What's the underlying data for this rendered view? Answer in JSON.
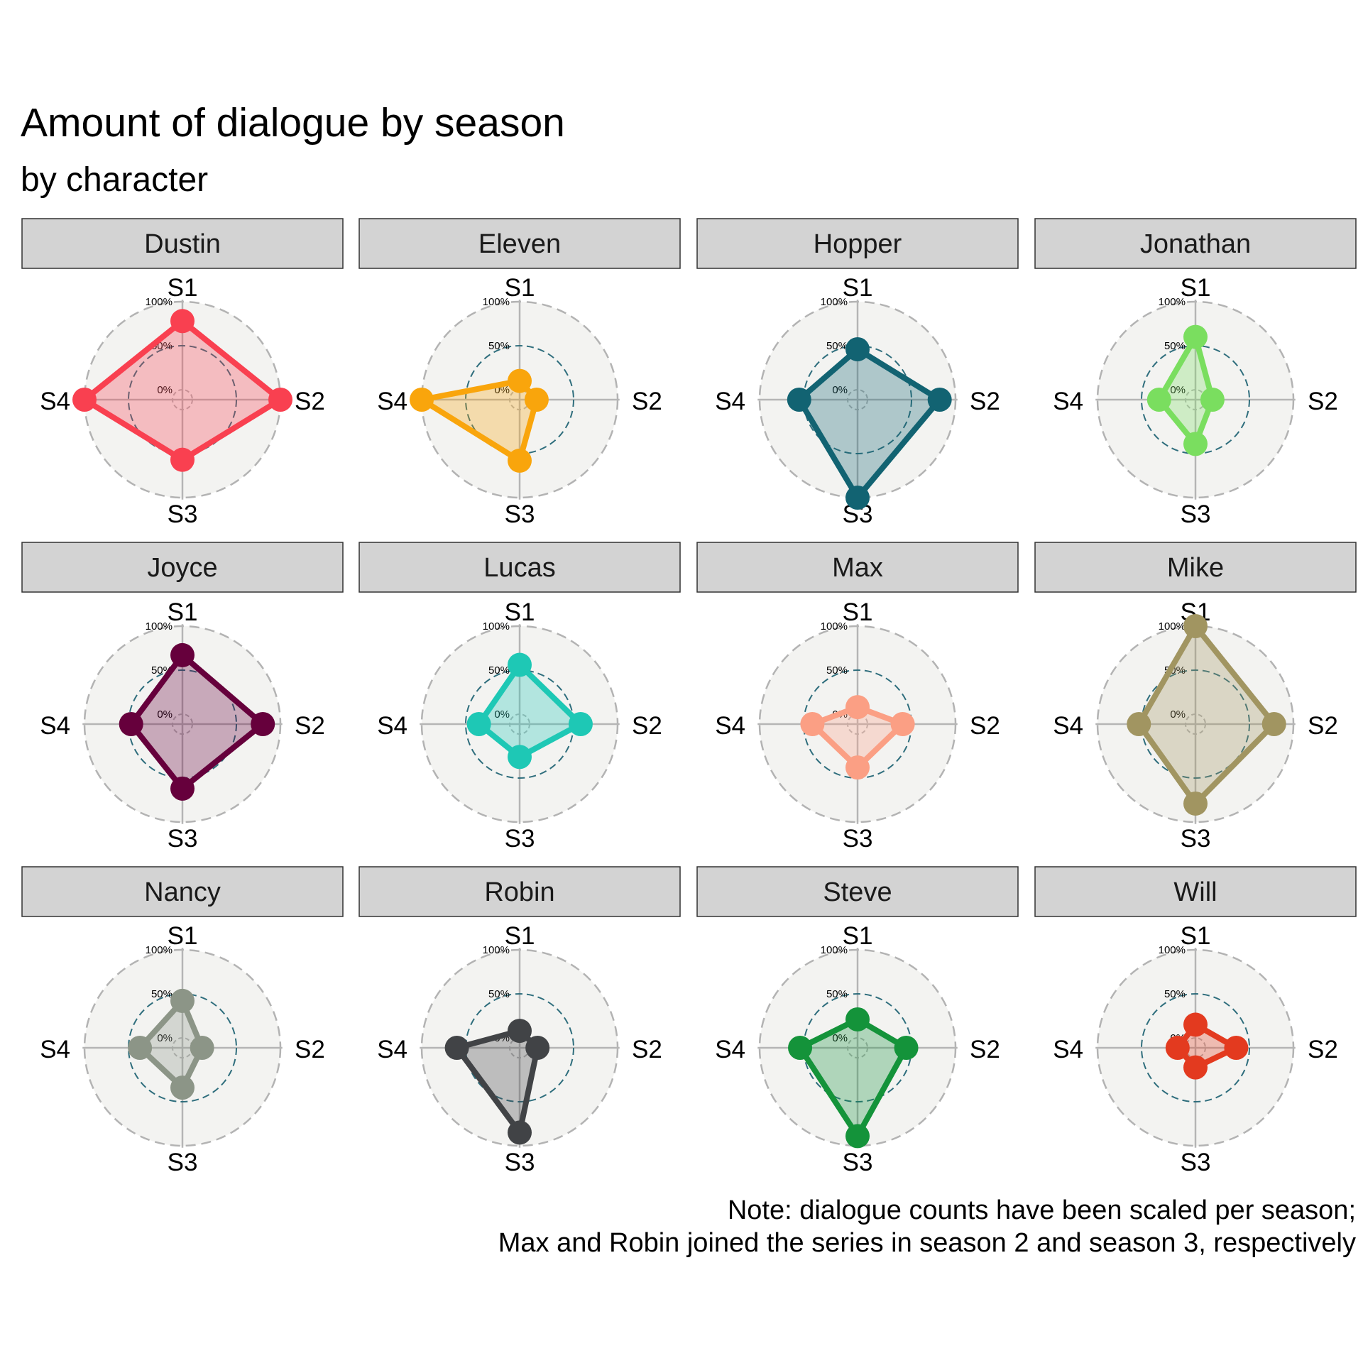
{
  "chart_data": {
    "type": "radar",
    "title": "Amount of dialogue by season",
    "subtitle": "by character",
    "axes": [
      "S1",
      "S2",
      "S3",
      "S4"
    ],
    "radial_ticks": [
      "0%",
      "50%",
      "100%"
    ],
    "ylim": [
      0,
      100
    ],
    "facets": [
      {
        "name": "Dustin",
        "color": "#f94050",
        "values": [
          78,
          100,
          57,
          100
        ]
      },
      {
        "name": "Eleven",
        "color": "#f9a50c",
        "values": [
          10,
          8,
          58,
          100
        ]
      },
      {
        "name": "Hopper",
        "color": "#126372",
        "values": [
          46,
          82,
          100,
          55
        ]
      },
      {
        "name": "Jonathan",
        "color": "#7ade5f",
        "values": [
          60,
          8,
          39,
          30
        ]
      },
      {
        "name": "Joyce",
        "color": "#66003c",
        "values": [
          67,
          80,
          62,
          47
        ]
      },
      {
        "name": "Lucas",
        "color": "#1ec8b5",
        "values": [
          56,
          58,
          26,
          35
        ]
      },
      {
        "name": "Max",
        "color": "#fb9f84",
        "values": [
          8,
          40,
          38,
          40
        ]
      },
      {
        "name": "Mike",
        "color": "#a19561",
        "values": [
          100,
          78,
          79,
          53
        ]
      },
      {
        "name": "Nancy",
        "color": "#8c9587",
        "values": [
          42,
          11,
          34,
          37
        ]
      },
      {
        "name": "Robin",
        "color": "#414346",
        "values": [
          8,
          9,
          85,
          60
        ]
      },
      {
        "name": "Steve",
        "color": "#14933a",
        "values": [
          21,
          44,
          89,
          54
        ]
      },
      {
        "name": "Will",
        "color": "#e33a1f",
        "values": [
          15,
          35,
          11,
          9
        ]
      }
    ],
    "note": [
      "Note: dialogue counts have been scaled per season;",
      "Max and Robin joined the series in season 2 and season 3, respectively"
    ]
  }
}
